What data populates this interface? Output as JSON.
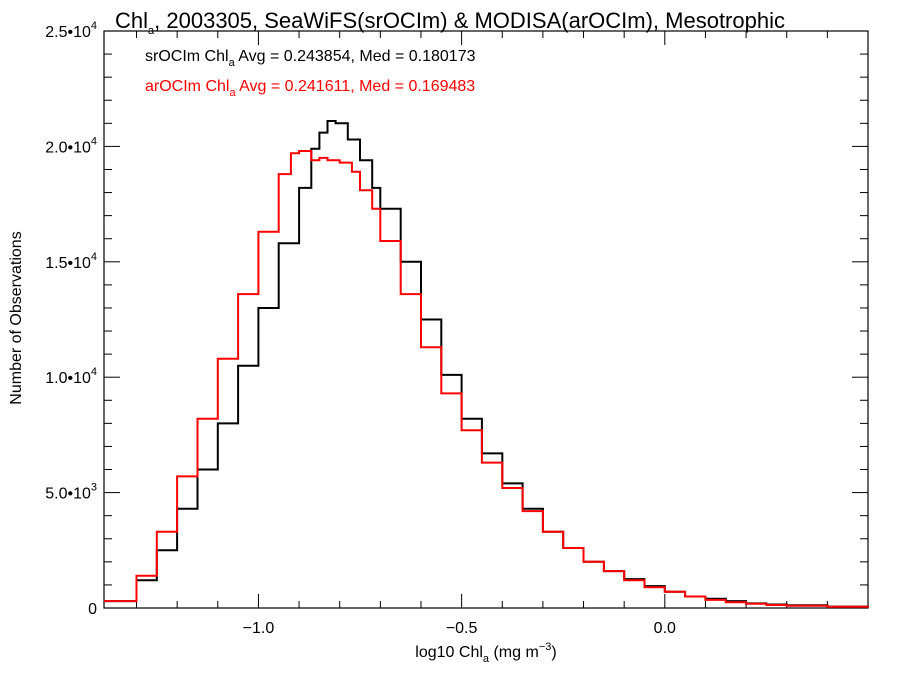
{
  "chart_data": {
    "type": "line",
    "step": true,
    "title": {
      "main": "Chl",
      "main_sub": "a",
      "rest": ", 2003305, SeaWiFS(srOCIm) & MODISA(arOCIm), Mesotrophic"
    },
    "xlabel": {
      "pre": "log10 Chl",
      "sub": "a",
      "post": " (mg m",
      "sup": "−3",
      "end": ")"
    },
    "ylabel": "Number of Observations",
    "xlim": [
      -1.38,
      0.5
    ],
    "ylim": [
      0,
      25000
    ],
    "x_ticks": [
      {
        "value": -1.0,
        "label": "−1.0"
      },
      {
        "value": -0.5,
        "label": "−0.5"
      },
      {
        "value": 0.0,
        "label": "0.0"
      }
    ],
    "y_ticks": [
      {
        "value": 0,
        "label": "0"
      },
      {
        "value": 5000,
        "mantissa": "5.0•10",
        "exp": "3"
      },
      {
        "value": 10000,
        "mantissa": "1.0•10",
        "exp": "4"
      },
      {
        "value": 15000,
        "mantissa": "1.5•10",
        "exp": "4"
      },
      {
        "value": 20000,
        "mantissa": "2.0•10",
        "exp": "4"
      },
      {
        "value": 25000,
        "mantissa": "2.5•10",
        "exp": "4"
      }
    ],
    "grid": false,
    "legend_position": "top-left",
    "series": [
      {
        "name": "srOCIm",
        "color": "#000000",
        "label": {
          "pre": "srOCIm Chl",
          "sub": "a",
          "post": " Avg = 0.243854, Med = 0.180173"
        },
        "x": [
          -1.38,
          -1.3,
          -1.25,
          -1.2,
          -1.15,
          -1.1,
          -1.05,
          -1.0,
          -0.95,
          -0.9,
          -0.87,
          -0.85,
          -0.83,
          -0.81,
          -0.78,
          -0.75,
          -0.72,
          -0.7,
          -0.65,
          -0.6,
          -0.55,
          -0.5,
          -0.45,
          -0.4,
          -0.35,
          -0.3,
          -0.25,
          -0.2,
          -0.15,
          -0.1,
          -0.05,
          0.0,
          0.05,
          0.1,
          0.15,
          0.2,
          0.25,
          0.3,
          0.4,
          0.5
        ],
        "y": [
          300,
          1200,
          2500,
          4300,
          6000,
          8000,
          10500,
          13000,
          15800,
          18200,
          19900,
          20600,
          21100,
          21000,
          20300,
          19400,
          18200,
          17300,
          15000,
          12500,
          10100,
          8200,
          6700,
          5400,
          4300,
          3300,
          2600,
          2000,
          1600,
          1250,
          950,
          700,
          500,
          400,
          300,
          200,
          150,
          120,
          60,
          30
        ]
      },
      {
        "name": "arOCIm",
        "color": "#ff0000",
        "label": {
          "pre": "arOCIm Chl",
          "sub": "a",
          "post": " Avg = 0.241611, Med = 0.169483"
        },
        "x": [
          -1.38,
          -1.3,
          -1.25,
          -1.2,
          -1.15,
          -1.1,
          -1.05,
          -1.0,
          -0.95,
          -0.92,
          -0.9,
          -0.87,
          -0.85,
          -0.83,
          -0.8,
          -0.77,
          -0.75,
          -0.72,
          -0.7,
          -0.65,
          -0.6,
          -0.55,
          -0.5,
          -0.45,
          -0.4,
          -0.35,
          -0.3,
          -0.25,
          -0.2,
          -0.15,
          -0.1,
          -0.05,
          0.0,
          0.05,
          0.1,
          0.15,
          0.2,
          0.25,
          0.3,
          0.4,
          0.5
        ],
        "y": [
          300,
          1400,
          3300,
          5700,
          8200,
          10800,
          13600,
          16300,
          18800,
          19700,
          19800,
          19400,
          19500,
          19400,
          19300,
          18900,
          18100,
          17300,
          15900,
          13600,
          11300,
          9300,
          7700,
          6300,
          5200,
          4200,
          3300,
          2600,
          2000,
          1600,
          1200,
          900,
          700,
          500,
          350,
          250,
          180,
          130,
          100,
          50,
          20
        ]
      }
    ]
  }
}
